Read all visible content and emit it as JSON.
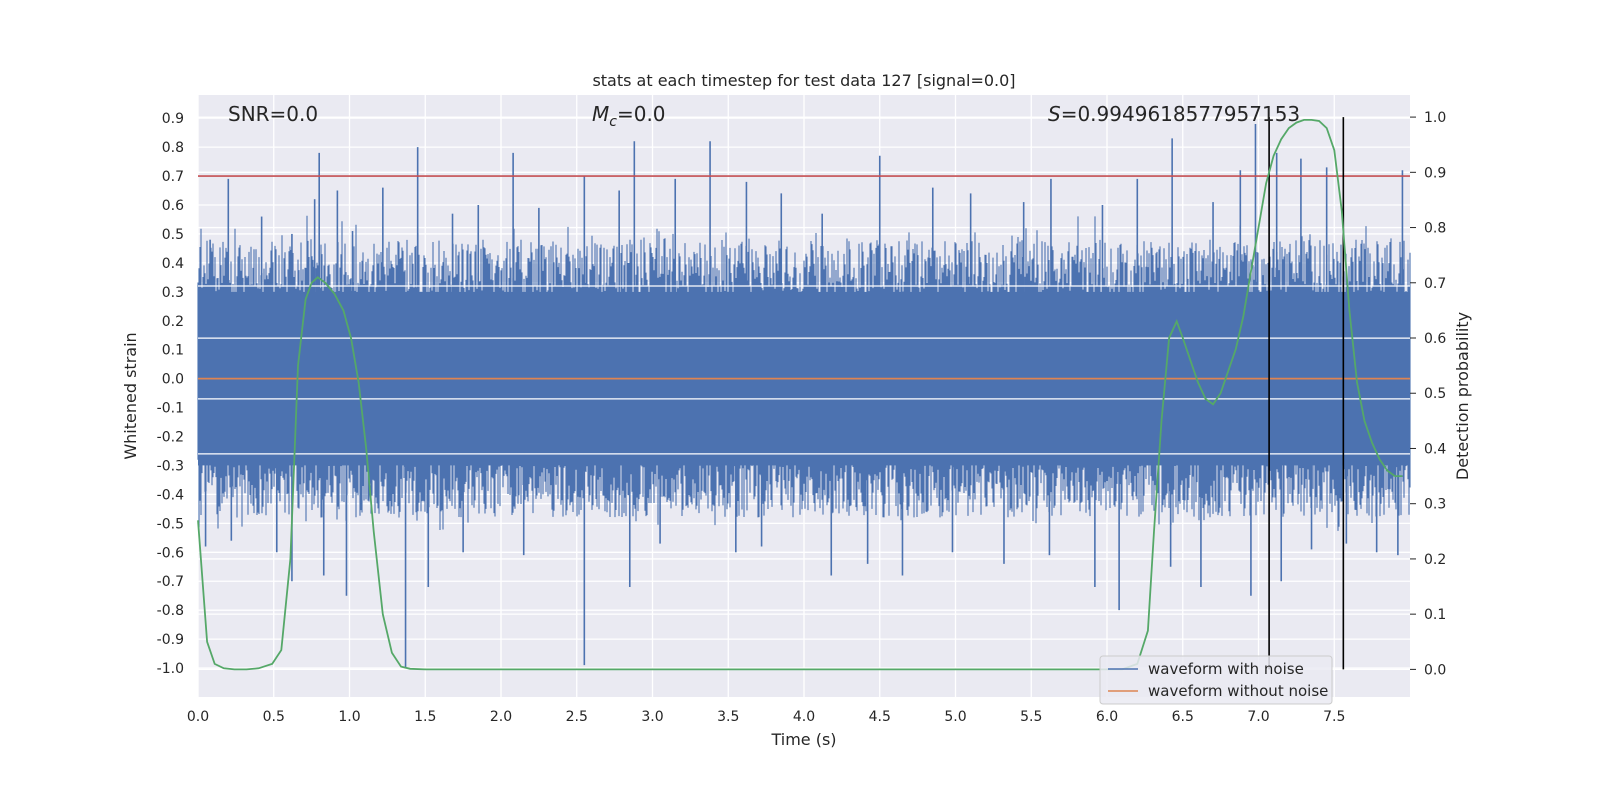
{
  "chart_data": {
    "type": "line",
    "title": "stats at each timestep for test data 127 [signal=0.0]",
    "xlabel": "Time (s)",
    "ylabel_left": "Whitened strain",
    "ylabel_right": "Detection probability",
    "xlim": [
      0.0,
      8.0
    ],
    "ylim_left": [
      -1.1,
      0.98
    ],
    "ylim_right": [
      -0.05,
      1.04
    ],
    "x_ticks": [
      "0.0",
      "0.5",
      "1.0",
      "1.5",
      "2.0",
      "2.5",
      "3.0",
      "3.5",
      "4.0",
      "4.5",
      "5.0",
      "5.5",
      "6.0",
      "6.5",
      "7.0",
      "7.5"
    ],
    "y_ticks_left": [
      "0.9",
      "0.8",
      "0.7",
      "0.6",
      "0.5",
      "0.4",
      "0.3",
      "0.2",
      "0.1",
      "0.0",
      "-0.1",
      "-0.2",
      "-0.3",
      "-0.4",
      "-0.5",
      "-0.6",
      "-0.7",
      "-0.8",
      "-0.9",
      "-1.0"
    ],
    "y_ticks_right": [
      "1.0",
      "0.9",
      "0.8",
      "0.7",
      "0.6",
      "0.5",
      "0.4",
      "0.3",
      "0.2",
      "0.1",
      "0.0"
    ],
    "grid": true,
    "legend_position": "lower-right",
    "annotations": {
      "snr": "SNR=0.0",
      "mc_symbol": "M",
      "mc_sub": "c",
      "mc_value": "=0.0",
      "s_symbol": "S",
      "s_value": "=0.9949618577957153"
    },
    "threshold_line": {
      "y": 0.7,
      "color": "#c44e52"
    },
    "vertical_lines": [
      7.07,
      7.56
    ],
    "series": [
      {
        "name": "waveform with noise",
        "color": "#4c72b0",
        "description": "dense whitened strain noise, approx. in [-0.45, 0.45] with spikes",
        "band_upper": 0.42,
        "band_lower": -0.42,
        "positive_spikes": [
          [
            0.08,
            0.48
          ],
          [
            0.2,
            0.69
          ],
          [
            0.42,
            0.56
          ],
          [
            0.62,
            0.5
          ],
          [
            0.77,
            0.62
          ],
          [
            0.8,
            0.78
          ],
          [
            0.92,
            0.65
          ],
          [
            1.02,
            0.51
          ],
          [
            1.22,
            0.66
          ],
          [
            1.45,
            0.8
          ],
          [
            1.68,
            0.57
          ],
          [
            1.85,
            0.6
          ],
          [
            2.08,
            0.78
          ],
          [
            2.25,
            0.59
          ],
          [
            2.55,
            0.7
          ],
          [
            2.78,
            0.65
          ],
          [
            2.88,
            0.82
          ],
          [
            3.15,
            0.69
          ],
          [
            3.38,
            0.82
          ],
          [
            3.62,
            0.68
          ],
          [
            3.85,
            0.64
          ],
          [
            4.12,
            0.57
          ],
          [
            4.5,
            0.77
          ],
          [
            4.85,
            0.66
          ],
          [
            5.1,
            0.64
          ],
          [
            5.45,
            0.61
          ],
          [
            5.63,
            0.69
          ],
          [
            5.97,
            0.6
          ],
          [
            6.2,
            0.69
          ],
          [
            6.43,
            0.83
          ],
          [
            6.7,
            0.61
          ],
          [
            6.88,
            0.72
          ],
          [
            6.98,
            0.88
          ],
          [
            7.12,
            0.78
          ],
          [
            7.28,
            0.76
          ],
          [
            7.45,
            0.73
          ],
          [
            7.95,
            0.72
          ]
        ],
        "negative_spikes": [
          [
            0.05,
            -0.58
          ],
          [
            0.22,
            -0.56
          ],
          [
            0.52,
            -0.6
          ],
          [
            0.62,
            -0.7
          ],
          [
            0.83,
            -0.68
          ],
          [
            0.98,
            -0.75
          ],
          [
            1.37,
            -1.0
          ],
          [
            1.52,
            -0.72
          ],
          [
            1.75,
            -0.6
          ],
          [
            2.15,
            -0.61
          ],
          [
            2.55,
            -0.99
          ],
          [
            2.85,
            -0.72
          ],
          [
            3.05,
            -0.57
          ],
          [
            3.55,
            -0.6
          ],
          [
            3.72,
            -0.58
          ],
          [
            4.18,
            -0.68
          ],
          [
            4.42,
            -0.64
          ],
          [
            4.65,
            -0.68
          ],
          [
            4.98,
            -0.6
          ],
          [
            5.32,
            -0.64
          ],
          [
            5.62,
            -0.61
          ],
          [
            5.92,
            -0.72
          ],
          [
            6.08,
            -0.8
          ],
          [
            6.42,
            -0.65
          ],
          [
            6.62,
            -0.72
          ],
          [
            6.95,
            -0.75
          ],
          [
            7.15,
            -0.7
          ],
          [
            7.35,
            -0.59
          ],
          [
            7.58,
            -0.57
          ],
          [
            7.78,
            -0.6
          ],
          [
            7.92,
            -0.61
          ]
        ]
      },
      {
        "name": "waveform without noise",
        "color": "#dd8452",
        "x": [
          0.0,
          8.0
        ],
        "y": [
          0.0,
          0.0
        ]
      },
      {
        "name": "detection probability",
        "color": "#55a868",
        "axis": "right",
        "x": [
          0.0,
          0.06,
          0.11,
          0.17,
          0.24,
          0.32,
          0.4,
          0.49,
          0.55,
          0.61,
          0.66,
          0.71,
          0.75,
          0.79,
          0.84,
          0.9,
          0.96,
          1.01,
          1.06,
          1.11,
          1.16,
          1.22,
          1.28,
          1.34,
          1.4,
          1.5,
          6.1,
          6.2,
          6.27,
          6.31,
          6.36,
          6.41,
          6.46,
          6.5,
          6.55,
          6.6,
          6.65,
          6.7,
          6.75,
          6.8,
          6.85,
          6.9,
          6.95,
          7.0,
          7.05,
          7.1,
          7.15,
          7.2,
          7.25,
          7.3,
          7.35,
          7.4,
          7.45,
          7.5,
          7.55,
          7.6,
          7.65,
          7.7,
          7.75,
          7.8,
          7.85,
          7.9,
          7.95
        ],
        "y": [
          0.27,
          0.05,
          0.01,
          0.002,
          0.0,
          0.0,
          0.002,
          0.01,
          0.035,
          0.2,
          0.55,
          0.67,
          0.7,
          0.71,
          0.7,
          0.68,
          0.65,
          0.6,
          0.52,
          0.4,
          0.25,
          0.1,
          0.03,
          0.005,
          0.001,
          0.0,
          0.0,
          0.01,
          0.07,
          0.25,
          0.45,
          0.6,
          0.63,
          0.6,
          0.56,
          0.52,
          0.49,
          0.48,
          0.5,
          0.54,
          0.58,
          0.64,
          0.72,
          0.8,
          0.88,
          0.93,
          0.96,
          0.98,
          0.99,
          0.995,
          0.995,
          0.993,
          0.98,
          0.94,
          0.83,
          0.65,
          0.52,
          0.45,
          0.41,
          0.38,
          0.36,
          0.35,
          0.35
        ]
      }
    ]
  }
}
